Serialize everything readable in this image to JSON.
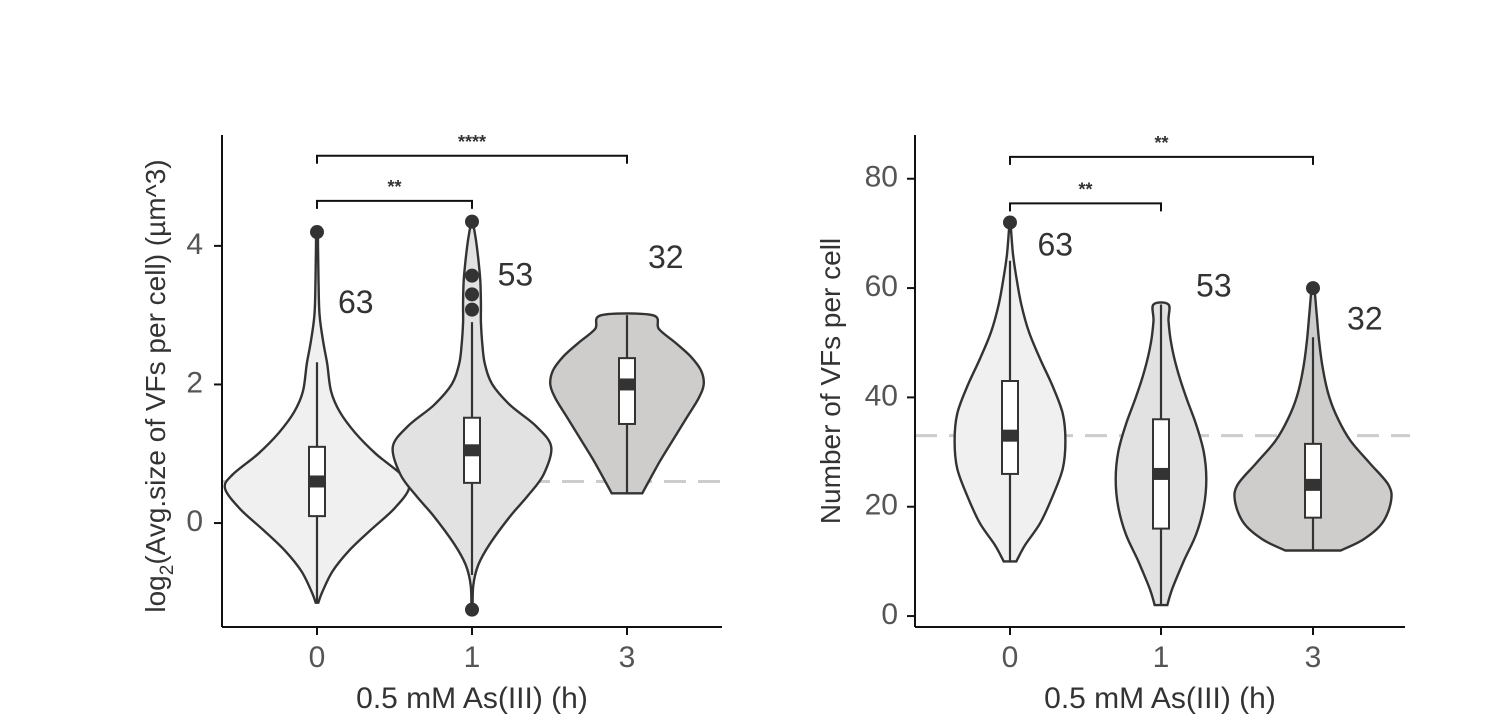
{
  "chart_data": [
    {
      "type": "violin",
      "ylabel": "log₂(Avg.size of VFs per cell) (µm^3)",
      "ylabel_main": "log",
      "ylabel_sub": "2",
      "ylabel_rest": "(Avg.size of VFs per cell) (µm^3)",
      "xlabel": "0.5 mM As(III) (h)",
      "categories": [
        "0",
        "1",
        "3"
      ],
      "yticks": [
        0,
        2,
        4
      ],
      "ylim": [
        -1.5,
        5.6
      ],
      "reference_line": 0.6,
      "fills": [
        "#f0f0f0",
        "#e2e2e2",
        "#cfcdcc"
      ],
      "counts": [
        "63",
        "53",
        "32"
      ],
      "count_positions": [
        [
          0.25,
          3.15
        ],
        [
          1.28,
          3.55
        ],
        [
          2.25,
          3.8
        ]
      ],
      "groups": [
        {
          "min": -1.15,
          "max": 4.2,
          "q1": 0.1,
          "median": 0.6,
          "q3": 1.1,
          "whisker_low": -1.15,
          "whisker_high": 2.32,
          "outliers": [
            4.2
          ],
          "density": [
            [
              -1.15,
              0.01
            ],
            [
              -1.0,
              0.04
            ],
            [
              -0.7,
              0.12
            ],
            [
              -0.4,
              0.25
            ],
            [
              -0.1,
              0.42
            ],
            [
              0.2,
              0.6
            ],
            [
              0.5,
              0.72
            ],
            [
              0.7,
              0.66
            ],
            [
              1.0,
              0.46
            ],
            [
              1.3,
              0.3
            ],
            [
              1.6,
              0.18
            ],
            [
              1.9,
              0.11
            ],
            [
              2.3,
              0.08
            ],
            [
              2.6,
              0.05
            ],
            [
              3.0,
              0.02
            ],
            [
              3.5,
              0.012
            ],
            [
              4.0,
              0.008
            ],
            [
              4.2,
              0.006
            ]
          ]
        },
        {
          "min": -1.25,
          "max": 4.35,
          "q1": 0.58,
          "median": 1.05,
          "q3": 1.52,
          "whisker_low": -0.75,
          "whisker_high": 2.9,
          "outliers": [
            -1.25,
            3.08,
            3.3,
            3.57,
            4.35
          ],
          "density": [
            [
              -1.25,
              0.005
            ],
            [
              -0.9,
              0.01
            ],
            [
              -0.6,
              0.05
            ],
            [
              -0.3,
              0.14
            ],
            [
              0.1,
              0.3
            ],
            [
              0.4,
              0.44
            ],
            [
              0.7,
              0.56
            ],
            [
              1.1,
              0.62
            ],
            [
              1.4,
              0.5
            ],
            [
              1.7,
              0.3
            ],
            [
              2.0,
              0.16
            ],
            [
              2.3,
              0.1
            ],
            [
              2.6,
              0.08
            ],
            [
              2.9,
              0.07
            ],
            [
              3.2,
              0.07
            ],
            [
              3.5,
              0.065
            ],
            [
              3.8,
              0.05
            ],
            [
              4.1,
              0.03
            ],
            [
              4.35,
              0.004
            ]
          ]
        },
        {
          "min": 0.43,
          "max": 3.0,
          "q1": 1.43,
          "median": 2.0,
          "q3": 2.38,
          "whisker_low": 0.43,
          "whisker_high": 3.0,
          "outliers": [],
          "density": [
            [
              0.43,
              0.12
            ],
            [
              0.6,
              0.17
            ],
            [
              0.9,
              0.26
            ],
            [
              1.2,
              0.36
            ],
            [
              1.5,
              0.46
            ],
            [
              1.8,
              0.56
            ],
            [
              2.0,
              0.6
            ],
            [
              2.2,
              0.58
            ],
            [
              2.4,
              0.5
            ],
            [
              2.6,
              0.38
            ],
            [
              2.8,
              0.25
            ],
            [
              3.0,
              0.2
            ]
          ]
        }
      ],
      "significance": [
        {
          "from": 0,
          "to": 1,
          "label": "**",
          "y": 4.65
        },
        {
          "from": 0,
          "to": 2,
          "label": "****",
          "y": 5.3
        }
      ]
    },
    {
      "type": "violin",
      "ylabel": "Number of VFs per cell",
      "xlabel": "0.5 mM As(III) (h)",
      "categories": [
        "0",
        "1",
        "3"
      ],
      "yticks": [
        0,
        20,
        40,
        60,
        80
      ],
      "ylim": [
        -2,
        88
      ],
      "reference_line": 33,
      "fills": [
        "#f0f0f0",
        "#e2e2e2",
        "#cfcdcc"
      ],
      "counts": [
        "63",
        "53",
        "32"
      ],
      "count_positions": [
        [
          0.3,
          67.5
        ],
        [
          1.35,
          60
        ],
        [
          2.35,
          54
        ]
      ],
      "groups": [
        {
          "min": 10,
          "max": 72,
          "q1": 26,
          "median": 33,
          "q3": 43,
          "whisker_low": 10,
          "whisker_high": 65,
          "outliers": [
            72
          ],
          "density": [
            [
              10,
              0.05
            ],
            [
              13,
              0.12
            ],
            [
              17,
              0.24
            ],
            [
              22,
              0.34
            ],
            [
              27,
              0.42
            ],
            [
              32,
              0.44
            ],
            [
              37,
              0.42
            ],
            [
              42,
              0.34
            ],
            [
              47,
              0.24
            ],
            [
              52,
              0.15
            ],
            [
              57,
              0.09
            ],
            [
              62,
              0.05
            ],
            [
              66,
              0.025
            ],
            [
              70,
              0.01
            ],
            [
              72,
              0.005
            ]
          ]
        },
        {
          "min": 2,
          "max": 57,
          "q1": 16,
          "median": 26,
          "q3": 36,
          "whisker_low": 2,
          "whisker_high": 57,
          "outliers": [],
          "density": [
            [
              2,
              0.05
            ],
            [
              5,
              0.09
            ],
            [
              10,
              0.18
            ],
            [
              15,
              0.28
            ],
            [
              20,
              0.34
            ],
            [
              25,
              0.36
            ],
            [
              30,
              0.34
            ],
            [
              35,
              0.28
            ],
            [
              40,
              0.2
            ],
            [
              45,
              0.13
            ],
            [
              50,
              0.08
            ],
            [
              54,
              0.06
            ],
            [
              57,
              0.06
            ]
          ]
        },
        {
          "min": 12,
          "max": 60,
          "q1": 18,
          "median": 24,
          "q3": 31.5,
          "whisker_low": 12,
          "whisker_high": 51,
          "outliers": [
            60
          ],
          "density": [
            [
              12,
              0.22
            ],
            [
              14,
              0.4
            ],
            [
              17,
              0.55
            ],
            [
              21,
              0.62
            ],
            [
              24,
              0.6
            ],
            [
              28,
              0.45
            ],
            [
              32,
              0.3
            ],
            [
              36,
              0.2
            ],
            [
              40,
              0.13
            ],
            [
              45,
              0.08
            ],
            [
              50,
              0.05
            ],
            [
              55,
              0.03
            ],
            [
              60,
              0.01
            ]
          ]
        }
      ],
      "significance": [
        {
          "from": 0,
          "to": 1,
          "label": "**",
          "y": 75.5
        },
        {
          "from": 0,
          "to": 2,
          "label": "**",
          "y": 84
        }
      ]
    }
  ]
}
